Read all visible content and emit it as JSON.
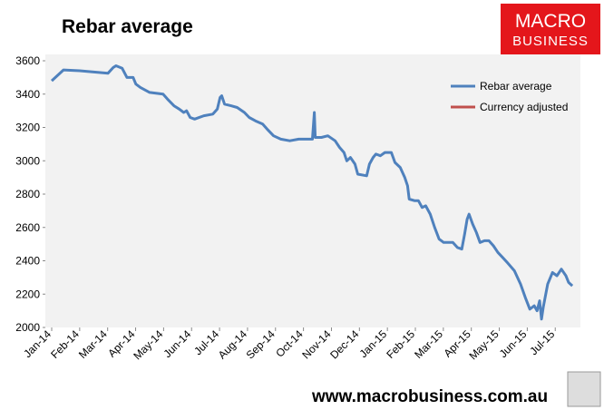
{
  "chart_data": {
    "type": "line",
    "title": "Rebar average",
    "xlim": [
      0,
      18.9
    ],
    "xticks": [
      {
        "value": 0,
        "label": "Jan-14"
      },
      {
        "value": 1,
        "label": "Feb-14"
      },
      {
        "value": 2,
        "label": "Mar-14"
      },
      {
        "value": 3,
        "label": "Apr-14"
      },
      {
        "value": 4,
        "label": "May-14"
      },
      {
        "value": 5,
        "label": "Jun-14"
      },
      {
        "value": 6,
        "label": "Jul-14"
      },
      {
        "value": 7,
        "label": "Aug-14"
      },
      {
        "value": 8,
        "label": "Sep-14"
      },
      {
        "value": 9,
        "label": "Oct-14"
      },
      {
        "value": 10,
        "label": "Nov-14"
      },
      {
        "value": 11,
        "label": "Dec-14"
      },
      {
        "value": 12,
        "label": "Jan-15"
      },
      {
        "value": 13,
        "label": "Feb-15"
      },
      {
        "value": 14,
        "label": "Mar-15"
      },
      {
        "value": 15,
        "label": "Apr-15"
      },
      {
        "value": 16,
        "label": "May-15"
      },
      {
        "value": 17,
        "label": "Jun-15"
      },
      {
        "value": 18,
        "label": "Jul-15"
      }
    ],
    "ylim": [
      2000,
      3600
    ],
    "yticks": [
      2000,
      2200,
      2400,
      2600,
      2800,
      3000,
      3200,
      3400,
      3600
    ],
    "grid": false,
    "legend": "top-right",
    "series": [
      {
        "name": "Rebar average",
        "color": "#4f81bd",
        "x": [
          0,
          0.42,
          1.0,
          2.01,
          2.2,
          2.3,
          2.52,
          2.69,
          2.91,
          3.01,
          3.17,
          3.5,
          3.98,
          4.14,
          4.37,
          4.56,
          4.72,
          4.82,
          4.95,
          5.11,
          5.44,
          5.76,
          5.92,
          6.02,
          6.08,
          6.18,
          6.41,
          6.63,
          6.89,
          7.06,
          7.28,
          7.54,
          7.7,
          7.93,
          8.19,
          8.51,
          8.83,
          9.16,
          9.32,
          9.39,
          9.42,
          9.64,
          9.87,
          10.13,
          10.29,
          10.45,
          10.55,
          10.68,
          10.84,
          10.94,
          11.26,
          11.36,
          11.49,
          11.59,
          11.75,
          11.91,
          12.14,
          12.27,
          12.46,
          12.62,
          12.72,
          12.78,
          12.98,
          13.11,
          13.24,
          13.37,
          13.53,
          13.69,
          13.85,
          14.01,
          14.34,
          14.5,
          14.66,
          14.76,
          14.85,
          14.92,
          15.05,
          15.18,
          15.31,
          15.47,
          15.63,
          15.79,
          15.95,
          16.12,
          16.28,
          16.54,
          16.76,
          16.93,
          17.09,
          17.25,
          17.35,
          17.44,
          17.51,
          17.57,
          17.73,
          17.9,
          18.06,
          18.22,
          18.38,
          18.48,
          18.61
        ],
        "values": [
          3480,
          3545,
          3540,
          3525,
          3560,
          3570,
          3555,
          3500,
          3500,
          3460,
          3440,
          3410,
          3400,
          3370,
          3330,
          3310,
          3290,
          3300,
          3260,
          3250,
          3270,
          3280,
          3310,
          3380,
          3390,
          3340,
          3330,
          3320,
          3290,
          3260,
          3240,
          3220,
          3190,
          3150,
          3130,
          3120,
          3130,
          3130,
          3130,
          3290,
          3140,
          3140,
          3150,
          3120,
          3080,
          3050,
          3000,
          3020,
          2980,
          2920,
          2910,
          2980,
          3020,
          3040,
          3030,
          3050,
          3050,
          2990,
          2960,
          2900,
          2850,
          2770,
          2760,
          2760,
          2720,
          2730,
          2680,
          2600,
          2530,
          2510,
          2510,
          2480,
          2470,
          2560,
          2650,
          2680,
          2620,
          2570,
          2510,
          2520,
          2520,
          2490,
          2450,
          2420,
          2390,
          2340,
          2260,
          2180,
          2110,
          2130,
          2100,
          2160,
          2050,
          2120,
          2260,
          2330,
          2310,
          2350,
          2310,
          2270,
          2250
        ]
      },
      {
        "name": "Currency adjusted",
        "color": "#c0504d",
        "x": [],
        "values": []
      }
    ]
  },
  "logo": {
    "line1": "MACRO",
    "line2": "BUSINESS"
  },
  "footer": "www.macrobusiness.com.au"
}
